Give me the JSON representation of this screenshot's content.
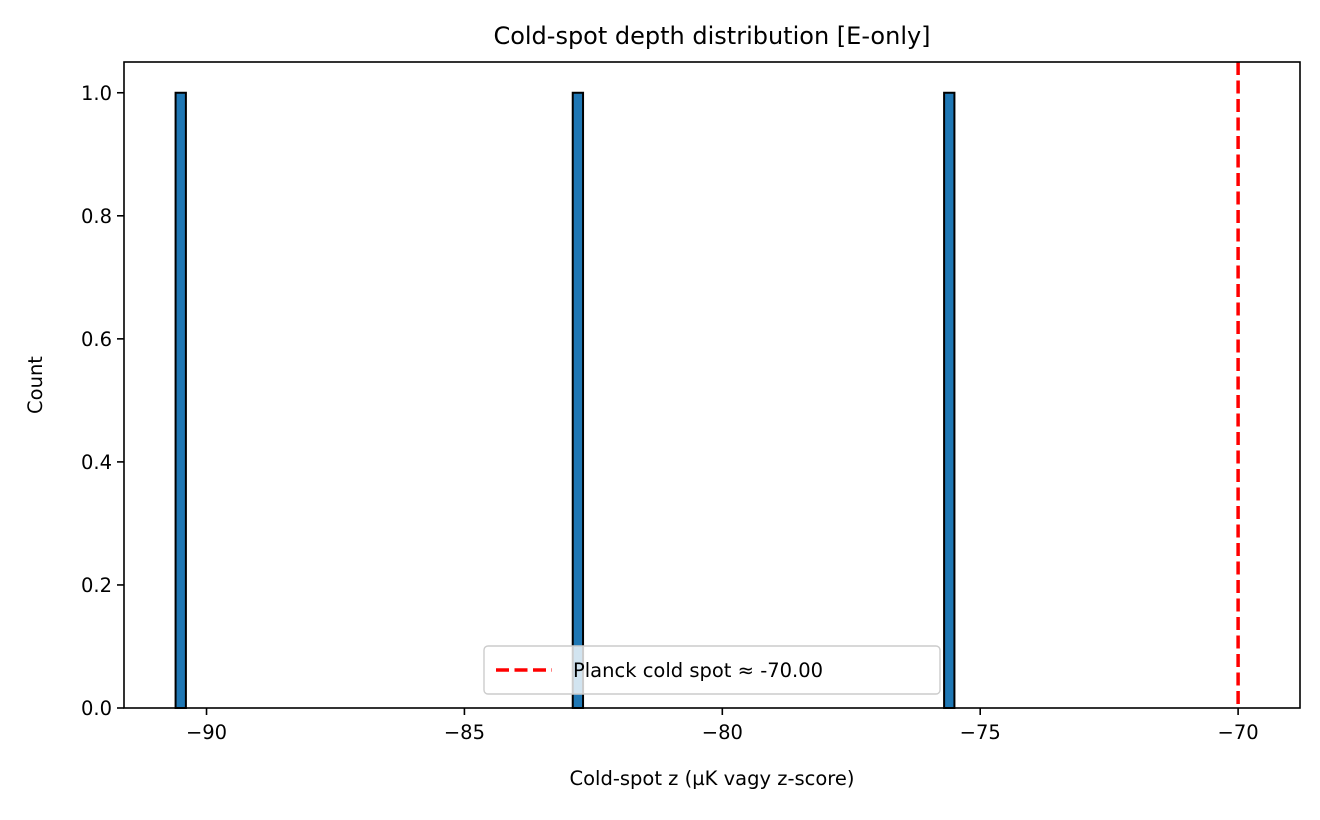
{
  "chart_data": {
    "type": "bar",
    "title": "Cold-spot depth distribution [E-only]",
    "xlabel": "Cold-spot z (µK vagy z-score)",
    "ylabel": "Count",
    "xlim": [
      -91.6,
      -68.8
    ],
    "ylim": [
      0,
      1.05
    ],
    "xticks": [
      -90,
      -85,
      -80,
      -75,
      -70
    ],
    "xtick_labels": [
      "−90",
      "−85",
      "−80",
      "−75",
      "−70"
    ],
    "yticks": [
      0.0,
      0.2,
      0.4,
      0.6,
      0.8,
      1.0
    ],
    "ytick_labels": [
      "0.0",
      "0.2",
      "0.4",
      "0.6",
      "0.8",
      "1.0"
    ],
    "bars": [
      {
        "x_start": -90.6,
        "x_end": -90.4,
        "count": 1
      },
      {
        "x_start": -82.9,
        "x_end": -82.7,
        "count": 1
      },
      {
        "x_start": -75.7,
        "x_end": -75.5,
        "count": 1
      }
    ],
    "reference_line": {
      "x": -70.0,
      "label": "Planck cold spot ≈ -70.00",
      "color": "#ff0000",
      "style": "dashed"
    },
    "bar_color": "#1f77b4",
    "bar_edge_color": "#000000",
    "legend_position": "lower center",
    "grid": false
  }
}
